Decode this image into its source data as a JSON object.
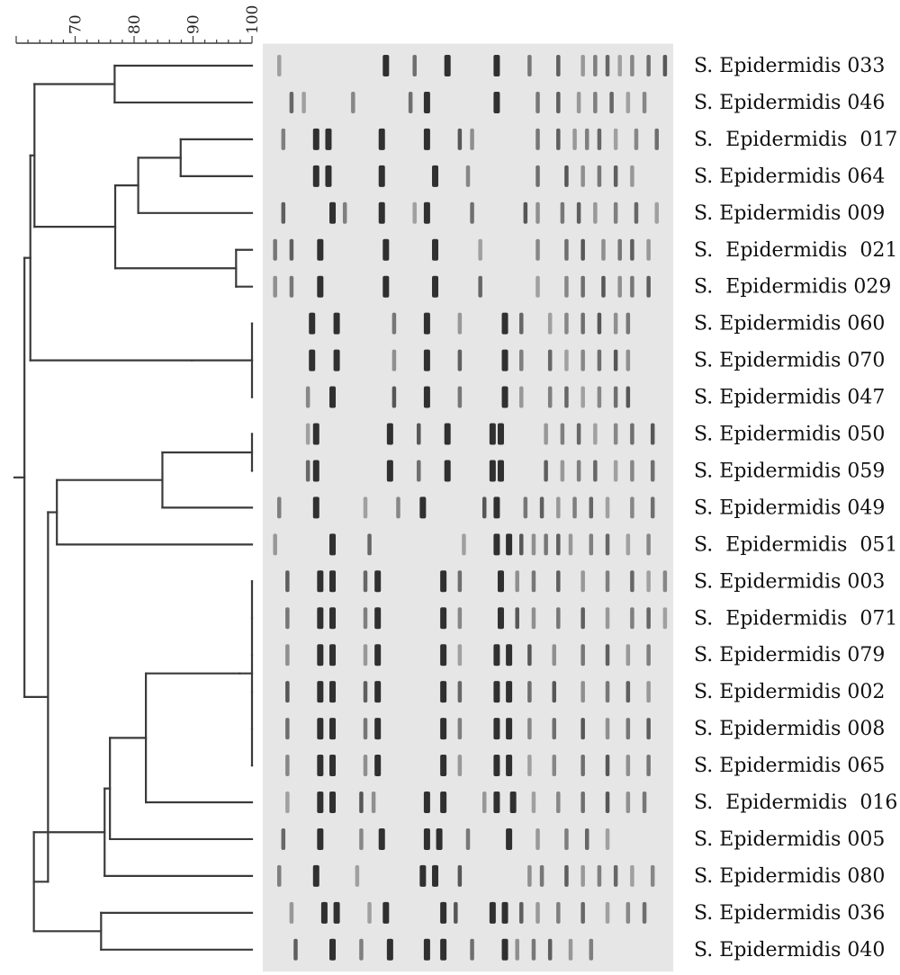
{
  "scale": {
    "min": 60,
    "max": 100,
    "labels": [
      "70",
      "80",
      "90",
      "100"
    ]
  },
  "isolates": [
    "S. Epidermidis 033",
    "S. Epidermidis 046",
    "S.  Epidermidis  017",
    "S. Epidermidis 064",
    "S. Epidermidis 009",
    "S.  Epidermidis  021",
    "S.  Epidermidis 029",
    "S. Epidermidis 060",
    "S. Epidermidis 070",
    "S. Epidermidis 047",
    "S. Epidermidis 050",
    "S. Epidermidis 059",
    "S. Epidermidis 049",
    "S.  Epidermidis  051",
    "S. Epidermidis 003",
    "S.  Epidermidis  071",
    "S. Epidermidis 079",
    "S. Epidermidis 002",
    "S. Epidermidis 008",
    "S. Epidermidis 065",
    "S.  Epidermidis  016",
    "S. Epidermidis 005",
    "S. Epidermidis 080",
    "S. Epidermidis 036",
    "S. Epidermidis 040"
  ],
  "dendrogram": {
    "n0": {
      "s": 76.7,
      "c": [
        0,
        1
      ]
    },
    "n1": {
      "s": 87.9,
      "c": [
        2,
        3
      ]
    },
    "n2": {
      "s": 80.7,
      "c": [
        "n1",
        4
      ]
    },
    "n3": {
      "s": 97.3,
      "c": [
        5,
        6
      ]
    },
    "n4": {
      "s": 76.8,
      "c": [
        "n2",
        "n3"
      ]
    },
    "n5": {
      "s": 63.1,
      "c": [
        "n0",
        "n4"
      ]
    },
    "n6": {
      "s": 100,
      "c": [
        7,
        8,
        9
      ]
    },
    "n7": {
      "s": 89.8,
      "c": [
        "n6"
      ]
    },
    "n8": {
      "s": 62.4,
      "c": [
        "n5",
        "n7"
      ]
    },
    "n9": {
      "s": 100,
      "c": [
        10,
        11
      ]
    },
    "n10": {
      "s": 84.8,
      "c": [
        "n9",
        12
      ]
    },
    "n11": {
      "s": 66.9,
      "c": [
        "n10",
        13
      ]
    },
    "n12": {
      "s": 100,
      "c": [
        14,
        15,
        16,
        17,
        18,
        19
      ]
    },
    "n13": {
      "s": 97.9,
      "c": [
        "n12"
      ]
    },
    "n14": {
      "s": 82.0,
      "c": [
        "n13",
        20
      ]
    },
    "n15": {
      "s": 75.9,
      "c": [
        "n14",
        21
      ]
    },
    "n16": {
      "s": 75.0,
      "c": [
        "n15",
        22
      ]
    },
    "n17": {
      "s": 74.4,
      "c": [
        23,
        24
      ]
    },
    "n18": {
      "s": 63.0,
      "c": [
        "n16",
        "n17"
      ]
    },
    "n19": {
      "s": 65.4,
      "c": [
        "n11",
        "n18"
      ]
    },
    "n20": {
      "s": 61.4,
      "c": [
        "n8",
        "n19"
      ]
    },
    "root": "n20"
  },
  "colors": {
    "line": "#3a3a3a",
    "gel_background": "#e6e6e6",
    "band": "#1c1c1c"
  }
}
